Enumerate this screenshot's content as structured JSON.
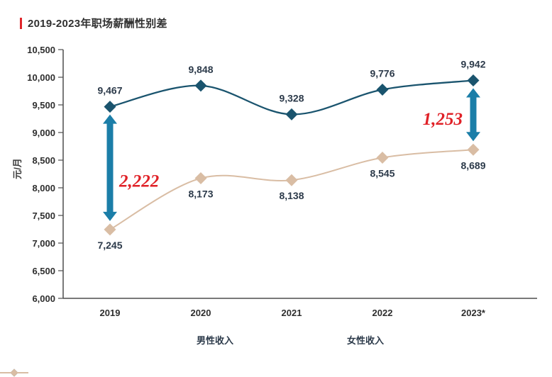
{
  "title": "2019-2023年职场薪酬性别差",
  "colors": {
    "accent_bar": "#e0262b",
    "annotation": "#e02127",
    "gap_arrow": "#1b7ea8",
    "axis": "#4d4d4d"
  },
  "chart_data": {
    "type": "line",
    "title": "2019-2023年职场薪酬性别差",
    "x": [
      "2019",
      "2020",
      "2021",
      "2022",
      "2023*"
    ],
    "series": [
      {
        "name": "男性收入",
        "values": [
          9467,
          9848,
          9328,
          9776,
          9942
        ],
        "color": "#1a546e",
        "label_position": "above",
        "marker": "diamond"
      },
      {
        "name": "女性收入",
        "values": [
          7245,
          8173,
          8138,
          8545,
          8689
        ],
        "color": "#d9bda4",
        "label_position": "below",
        "marker": "diamond"
      }
    ],
    "xlabel": "",
    "ylabel": "元/月",
    "ylim": [
      6000,
      10500
    ],
    "ytick_step": 500,
    "grid": false,
    "legend_position": "bottom",
    "annotations": [
      {
        "text": "2,222",
        "x": "2019",
        "between": [
          "男性收入",
          "女性收入"
        ],
        "label_side": "right",
        "label_dy": 27
      },
      {
        "text": "1,253",
        "x": "2023*",
        "between": [
          "男性收入",
          "女性收入"
        ],
        "label_side": "left",
        "label_dy": 14
      }
    ]
  }
}
